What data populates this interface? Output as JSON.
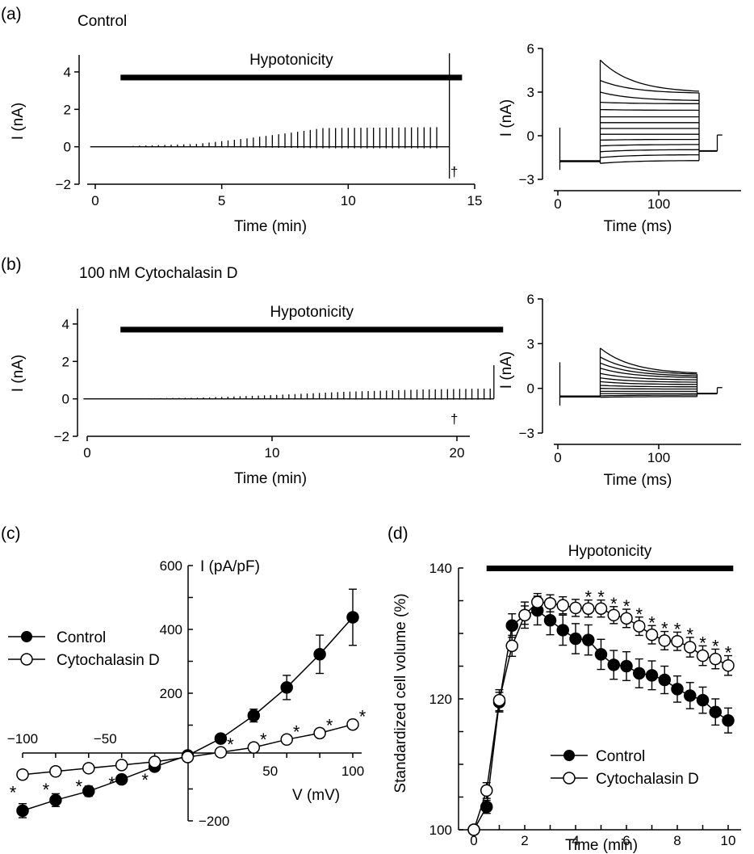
{
  "panel_labels": {
    "a": "(a)",
    "b": "(b)",
    "c": "(c)",
    "d": "(d)"
  },
  "dagger": "†",
  "chart_data": [
    {
      "id": "a_main",
      "type": "line",
      "condition": "Control",
      "bar_label": "Hypotonicity",
      "hypotonicity_span": [
        1.0,
        14.5
      ],
      "xlabel": "Time (min)",
      "ylabel": "I (nA)",
      "xlim": [
        -0.2,
        15
      ],
      "ylim": [
        -2,
        5
      ],
      "xticks": [
        0,
        5,
        10,
        15
      ],
      "yticks": [
        -2,
        0,
        2,
        4
      ],
      "pulse_start": 1.5,
      "pulse_interval": 0.25,
      "pulse_end": 13.7,
      "pulse_envelope": {
        "t": [
          1.5,
          4,
          6,
          8,
          9,
          13.7
        ],
        "amp": [
          0.05,
          0.15,
          0.45,
          0.8,
          1.0,
          1.05
        ]
      },
      "spike_time": 14.0,
      "spike_range": [
        -1.7,
        5.0
      ]
    },
    {
      "id": "a_inset",
      "type": "line",
      "xlabel": "Time (ms)",
      "ylabel": "I (nA)",
      "xlim": [
        -3,
        165
      ],
      "ylim": [
        -3,
        6
      ],
      "xticks": [
        0,
        100
      ],
      "yticks": [
        -3,
        0,
        3,
        6
      ],
      "step_window_ms": [
        42,
        140
      ],
      "holding_current": -1.75,
      "step_start": [
        -1.9,
        -1.5,
        -1.1,
        -0.7,
        -0.3,
        0.1,
        0.5,
        0.9,
        1.3,
        1.8,
        2.3,
        3.0,
        3.8,
        5.2
      ],
      "step_end": [
        -1.7,
        -1.3,
        -0.95,
        -0.6,
        -0.25,
        0.1,
        0.5,
        0.9,
        1.3,
        1.75,
        2.2,
        2.4,
        2.9,
        2.95
      ],
      "tail_current": -1.05
    },
    {
      "id": "b_main",
      "type": "line",
      "condition": "100 nM Cytochalasin D",
      "bar_label": "Hypotonicity",
      "hypotonicity_span": [
        1.8,
        22.5
      ],
      "xlabel": "Time (min)",
      "ylabel": "I (nA)",
      "xlim": [
        -0.2,
        23
      ],
      "ylim": [
        -2,
        5
      ],
      "xticks": [
        0,
        10,
        20
      ],
      "yticks": [
        -2,
        0,
        2,
        4
      ],
      "pulse_start": 2.0,
      "pulse_interval": 0.33,
      "pulse_end": 21.9,
      "pulse_envelope": {
        "t": [
          2,
          6,
          10,
          14,
          18,
          21.9
        ],
        "amp": [
          0.02,
          0.06,
          0.2,
          0.38,
          0.5,
          0.55
        ]
      },
      "spike_time": 22.0,
      "spike_range": [
        0,
        1.8
      ]
    },
    {
      "id": "b_inset",
      "type": "line",
      "xlabel": "Time (ms)",
      "ylabel": "I (nA)",
      "xlim": [
        -3,
        165
      ],
      "ylim": [
        -3,
        6
      ],
      "xticks": [
        0,
        100
      ],
      "yticks": [
        -3,
        0,
        3,
        6
      ],
      "step_window_ms": [
        42,
        138
      ],
      "holding_current": -0.55,
      "step_start": [
        -0.6,
        -0.5,
        -0.35,
        -0.2,
        0.0,
        0.2,
        0.45,
        0.7,
        1.0,
        1.35,
        1.7,
        2.1,
        2.7
      ],
      "step_end": [
        -0.55,
        -0.45,
        -0.35,
        -0.2,
        -0.05,
        0.1,
        0.25,
        0.4,
        0.55,
        0.7,
        0.8,
        0.9,
        0.95
      ],
      "tail_current": -0.35
    },
    {
      "id": "c",
      "type": "scatter",
      "xlabel": "V (mV)",
      "ylabel": "I (pA/pF)",
      "xlim": [
        -100,
        100
      ],
      "ylim": [
        -200,
        600
      ],
      "xticks": [
        -100,
        -50
      ],
      "yticks": [
        200,
        400,
        600
      ],
      "extra_ytick_label": "−200",
      "series": [
        {
          "name": "Control",
          "marker": "filled",
          "x": [
            -100,
            -80,
            -60,
            -40,
            -20,
            0,
            20,
            40,
            60,
            80,
            100
          ],
          "y": [
            -168,
            -135,
            -107,
            -70,
            -30,
            5,
            58,
            130,
            218,
            322,
            438
          ],
          "err": [
            22,
            20,
            16,
            12,
            10,
            6,
            12,
            20,
            38,
            60,
            88
          ]
        },
        {
          "name": "Cytochalasin D",
          "marker": "open",
          "x": [
            -100,
            -80,
            -60,
            -40,
            -20,
            0,
            20,
            40,
            60,
            80,
            100
          ],
          "y": [
            -55,
            -45,
            -35,
            -25,
            -15,
            0,
            15,
            30,
            55,
            75,
            102
          ],
          "err": [
            10,
            8,
            7,
            6,
            6,
            4,
            5,
            7,
            10,
            12,
            14
          ]
        }
      ],
      "significance_x": [
        -100,
        -80,
        -60,
        -40,
        -20,
        20,
        40,
        60,
        80,
        100
      ]
    },
    {
      "id": "d",
      "type": "scatter",
      "bar_label": "Hypotonicity",
      "hypotonicity_span": [
        0.5,
        10.2
      ],
      "xlabel": "Time (min)",
      "ylabel": "Standardized cell volume (%)",
      "xlim": [
        -0.4,
        10.6
      ],
      "ylim": [
        100,
        140
      ],
      "xticks": [
        0,
        2,
        4,
        6,
        8,
        10
      ],
      "yticks": [
        100,
        120,
        140
      ],
      "series": [
        {
          "name": "Control",
          "marker": "filled",
          "x": [
            0,
            0.5,
            1,
            1.5,
            2,
            2.5,
            3,
            3.5,
            4,
            4.5,
            5,
            5.5,
            6,
            6.5,
            7,
            7.5,
            8,
            8.5,
            9,
            9.5,
            10
          ],
          "y": [
            100,
            103.5,
            119.5,
            131.2,
            132.8,
            133.5,
            132,
            130.5,
            129.2,
            129,
            126.8,
            125.2,
            125,
            123.9,
            123.6,
            122.9,
            121.5,
            120.5,
            119.8,
            118,
            116.7
          ],
          "err": [
            0,
            1.0,
            1.5,
            1.8,
            2.0,
            2.2,
            2.2,
            2.3,
            2.3,
            2.3,
            2.3,
            2.2,
            2.2,
            2.2,
            2.2,
            2.1,
            2.0,
            2.0,
            2.0,
            2.0,
            1.9
          ]
        },
        {
          "name": "Cytochalasin D",
          "marker": "open",
          "x": [
            0,
            0.5,
            1,
            1.5,
            2,
            2.5,
            3,
            3.5,
            4,
            4.5,
            5,
            5.5,
            6,
            6.5,
            7,
            7.5,
            8,
            8.5,
            9,
            9.5,
            10
          ],
          "y": [
            100,
            106,
            119.8,
            128.1,
            132.8,
            134.8,
            134.6,
            134.3,
            133.9,
            133.8,
            133.8,
            132.8,
            132.3,
            131.1,
            129.8,
            128.9,
            128.8,
            127.9,
            126.6,
            126.1,
            125.1
          ],
          "err": [
            0,
            1.2,
            1.6,
            1.6,
            1.4,
            1.3,
            1.3,
            1.3,
            1.3,
            1.3,
            1.3,
            1.3,
            1.4,
            1.4,
            1.4,
            1.4,
            1.4,
            1.5,
            1.5,
            1.5,
            1.5
          ]
        }
      ],
      "significance_x": [
        4.5,
        5,
        5.5,
        6,
        6.5,
        7,
        7.5,
        8,
        8.5,
        9,
        9.5,
        10
      ]
    }
  ]
}
